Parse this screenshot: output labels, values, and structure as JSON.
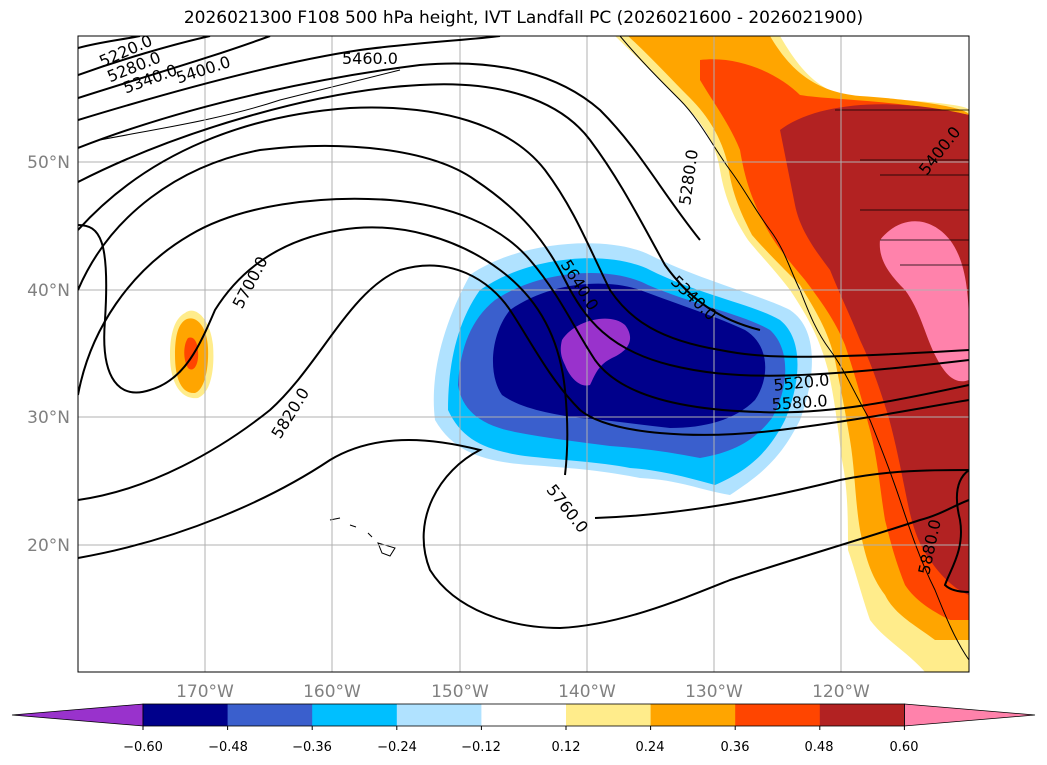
{
  "title": "2026021300 F108 500 hPa height, IVT Landfall PC (2026021600 - 2026021900)",
  "map": {
    "lat_ticks": [
      "50°N",
      "40°N",
      "30°N",
      "20°N"
    ],
    "lon_ticks": [
      "170°W",
      "160°W",
      "150°W",
      "140°W",
      "130°W",
      "120°W"
    ],
    "gridlines": true
  },
  "height_contour_labels": [
    "5220.0",
    "5280.0",
    "5340.0",
    "5400.0",
    "5460.0",
    "5700.0",
    "5820.0",
    "5640.0",
    "5340.0",
    "5280.0",
    "5520.0",
    "5580.0",
    "5760.0",
    "5400.0",
    "5880.0"
  ],
  "colorbar": {
    "tick_labels": [
      "−0.60",
      "−0.48",
      "−0.36",
      "−0.24",
      "−0.12",
      "0.12",
      "0.24",
      "0.36",
      "0.48",
      "0.60"
    ],
    "colors": [
      "#9932cc",
      "#00008b",
      "#3a5fcd",
      "#00bfff",
      "#b0e2ff",
      "#ffffff",
      "#ffec8b",
      "#ffa500",
      "#ff4500",
      "#b22222",
      "#ff82ab"
    ],
    "extend": "both"
  }
}
